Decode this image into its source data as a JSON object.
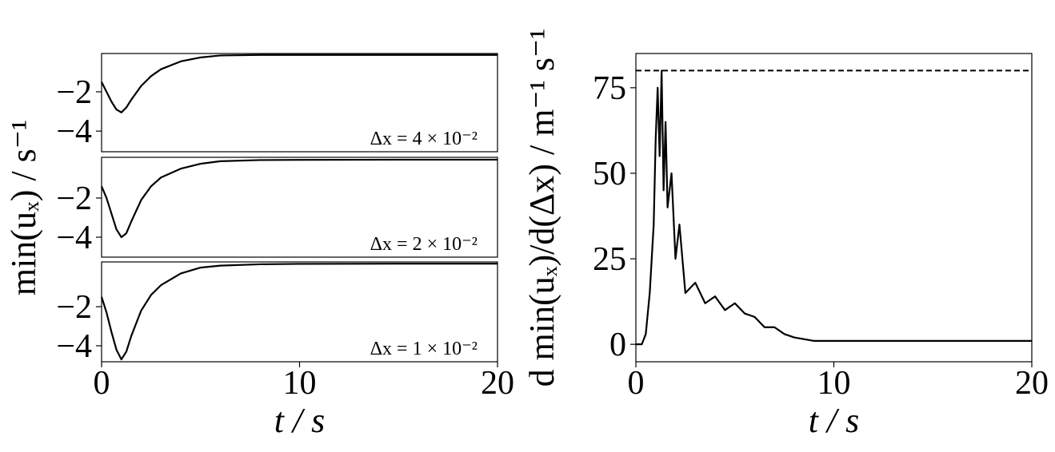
{
  "chart_data": [
    {
      "type": "line",
      "annotation": "Δx = 4 × 10⁻²",
      "color": "#000000",
      "x": [
        0,
        0.25,
        0.5,
        0.75,
        1,
        1.25,
        1.5,
        2,
        2.5,
        3,
        4,
        5,
        6,
        8,
        10,
        15,
        20
      ],
      "values": [
        -1.5,
        -2.0,
        -2.5,
        -2.9,
        -3.05,
        -2.8,
        -2.4,
        -1.7,
        -1.2,
        -0.85,
        -0.45,
        -0.25,
        -0.15,
        -0.12,
        -0.12,
        -0.12,
        -0.12
      ],
      "xlim": [
        0,
        20
      ],
      "ylim": [
        -5.05,
        -0.05
      ],
      "yticks": [
        {
          "value": -2,
          "label": "−2"
        },
        {
          "value": -4,
          "label": "−4"
        }
      ]
    },
    {
      "type": "line",
      "annotation": "Δx = 2 × 10⁻²",
      "color": "#000000",
      "ylabel": "min(uₓ) / s⁻¹",
      "x": [
        0,
        0.25,
        0.5,
        0.75,
        1,
        1.25,
        1.5,
        2,
        2.5,
        3,
        4,
        5,
        6,
        8,
        10,
        15,
        20
      ],
      "values": [
        -1.4,
        -2.0,
        -2.8,
        -3.6,
        -4.0,
        -3.8,
        -3.2,
        -2.1,
        -1.4,
        -0.95,
        -0.5,
        -0.25,
        -0.12,
        -0.06,
        -0.05,
        -0.04,
        -0.04
      ],
      "xlim": [
        0,
        20
      ],
      "ylim": [
        -5.02,
        0.08
      ],
      "yticks": [
        {
          "value": -2,
          "label": "−2"
        },
        {
          "value": -4,
          "label": "−4"
        }
      ]
    },
    {
      "type": "line",
      "annotation": "Δx = 1 × 10⁻²",
      "color": "#000000",
      "xlabel": "t / s",
      "x": [
        0,
        0.25,
        0.5,
        0.75,
        1,
        1.25,
        1.5,
        2,
        2.5,
        3,
        4,
        5,
        6,
        8,
        10,
        15,
        20
      ],
      "values": [
        -1.5,
        -2.3,
        -3.3,
        -4.2,
        -4.7,
        -4.3,
        -3.5,
        -2.2,
        -1.4,
        -0.9,
        -0.3,
        0.0,
        0.1,
        0.17,
        0.19,
        0.2,
        0.2
      ],
      "xlim": [
        0,
        20
      ],
      "ylim": [
        -4.82,
        0.29
      ],
      "xticks": [
        0,
        10,
        20
      ],
      "yticks": [
        {
          "value": -2,
          "label": "−2"
        },
        {
          "value": -4,
          "label": "−4"
        }
      ]
    },
    {
      "type": "line",
      "color": "#000000",
      "xlabel": "t / s",
      "ylabel": "d min(uₓ)/d(Δx) / m⁻¹ s⁻¹",
      "hline": 80,
      "x": [
        0,
        0.3,
        0.5,
        0.7,
        0.9,
        1.0,
        1.1,
        1.2,
        1.3,
        1.4,
        1.5,
        1.6,
        1.8,
        2.0,
        2.2,
        2.5,
        3,
        3.5,
        4,
        4.5,
        5,
        5.5,
        6,
        6.5,
        7,
        7.5,
        8,
        9,
        10,
        12,
        15,
        20
      ],
      "values": [
        0,
        0,
        3,
        15,
        35,
        60,
        75,
        55,
        80,
        45,
        65,
        40,
        50,
        25,
        35,
        15,
        18,
        12,
        14,
        10,
        12,
        9,
        8,
        5,
        5,
        3,
        2,
        1,
        1,
        1,
        1,
        1
      ],
      "xlim": [
        0,
        20
      ],
      "ylim": [
        -5.1,
        85
      ],
      "xticks": [
        0,
        10,
        20
      ],
      "yticks": [
        0,
        25,
        50,
        75
      ]
    }
  ]
}
